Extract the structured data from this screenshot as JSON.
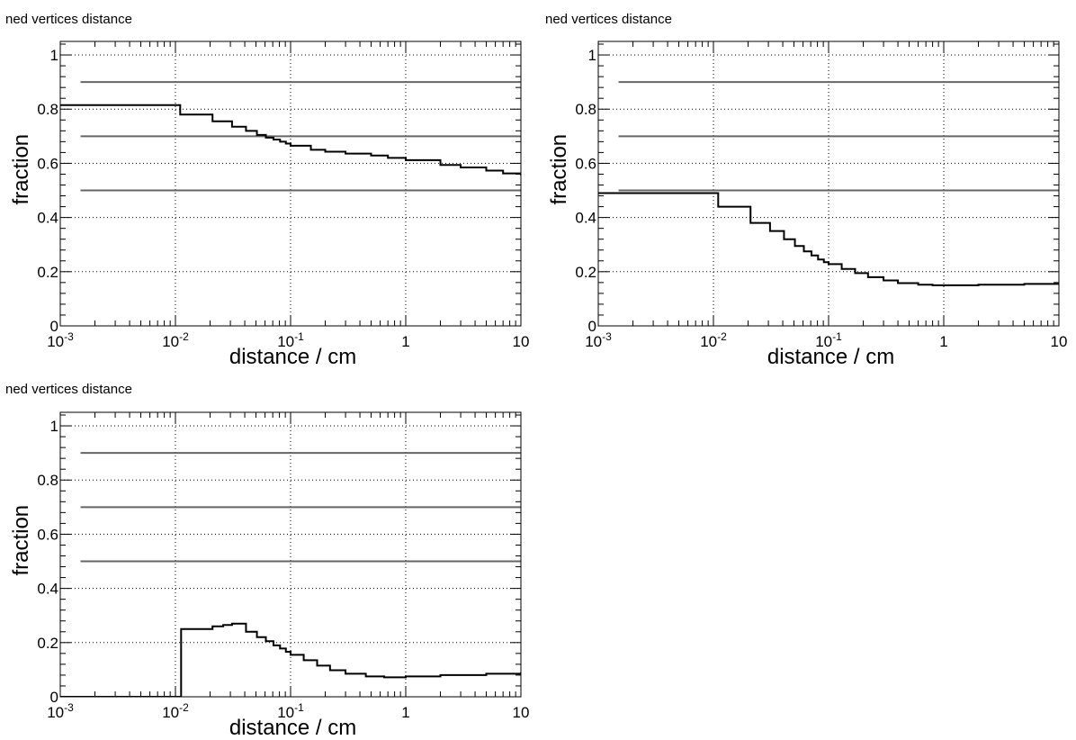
{
  "panels": [
    {
      "title": "ned vertices distance",
      "chart_data": {
        "type": "line",
        "title": "ned vertices distance",
        "xlabel": "distance / cm",
        "ylabel": "fraction",
        "xscale": "log",
        "xlim": [
          0.001,
          10
        ],
        "ylim": [
          0,
          1.05
        ],
        "x_tick_labels": [
          "10^-3",
          "10^-2",
          "10^-1",
          "1",
          "10"
        ],
        "y_tick_labels": [
          "0",
          "0.2",
          "0.4",
          "0.6",
          "0.8",
          "1"
        ],
        "grid": true,
        "reference_lines": [
          0.9,
          0.7,
          0.5
        ],
        "series": [
          {
            "style": "step",
            "x": [
              0.001,
              0.011,
              0.021,
              0.031,
              0.041,
              0.051,
              0.061,
              0.071,
              0.081,
              0.091,
              0.1,
              0.15,
              0.2,
              0.3,
              0.5,
              0.7,
              1,
              2,
              3,
              5,
              7,
              10
            ],
            "y": [
              0.815,
              0.78,
              0.755,
              0.735,
              0.72,
              0.705,
              0.695,
              0.688,
              0.68,
              0.673,
              0.665,
              0.65,
              0.643,
              0.636,
              0.629,
              0.62,
              0.612,
              0.594,
              0.585,
              0.573,
              0.563,
              0.556
            ]
          }
        ]
      }
    },
    {
      "title": "ned vertices distance",
      "chart_data": {
        "type": "line",
        "title": "ned vertices distance",
        "xlabel": "distance / cm",
        "ylabel": "fraction",
        "xscale": "log",
        "xlim": [
          0.001,
          10
        ],
        "ylim": [
          0,
          1.05
        ],
        "x_tick_labels": [
          "10^-3",
          "10^-2",
          "10^-1",
          "1",
          "10"
        ],
        "y_tick_labels": [
          "0",
          "0.2",
          "0.4",
          "0.6",
          "0.8",
          "1"
        ],
        "grid": true,
        "reference_lines": [
          0.9,
          0.7,
          0.5
        ],
        "series": [
          {
            "style": "step",
            "x": [
              0.001,
              0.011,
              0.021,
              0.031,
              0.041,
              0.051,
              0.061,
              0.071,
              0.081,
              0.091,
              0.1,
              0.13,
              0.17,
              0.22,
              0.3,
              0.4,
              0.6,
              0.8,
              1,
              2,
              5,
              10
            ],
            "y": [
              0.49,
              0.44,
              0.38,
              0.35,
              0.32,
              0.295,
              0.275,
              0.26,
              0.245,
              0.235,
              0.228,
              0.21,
              0.195,
              0.18,
              0.168,
              0.158,
              0.152,
              0.15,
              0.15,
              0.152,
              0.155,
              0.155
            ]
          }
        ]
      }
    },
    {
      "title": "ned vertices distance",
      "chart_data": {
        "type": "line",
        "title": "ned vertices distance",
        "xlabel": "distance / cm",
        "ylabel": "fraction",
        "xscale": "log",
        "xlim": [
          0.001,
          10
        ],
        "ylim": [
          0,
          1.05
        ],
        "x_tick_labels": [
          "10^-3",
          "10^-2",
          "10^-1",
          "1",
          "10"
        ],
        "y_tick_labels": [
          "0",
          "0.2",
          "0.4",
          "0.6",
          "0.8",
          "1"
        ],
        "grid": true,
        "reference_lines": [
          0.9,
          0.7,
          0.5
        ],
        "series": [
          {
            "style": "step",
            "x": [
              0.001,
              0.0112,
              0.021,
              0.026,
              0.031,
              0.041,
              0.051,
              0.061,
              0.071,
              0.081,
              0.091,
              0.1,
              0.13,
              0.17,
              0.22,
              0.3,
              0.45,
              0.65,
              1,
              2,
              5,
              10
            ],
            "y": [
              0.0,
              0.25,
              0.26,
              0.265,
              0.27,
              0.24,
              0.22,
              0.205,
              0.19,
              0.178,
              0.166,
              0.155,
              0.135,
              0.115,
              0.098,
              0.085,
              0.075,
              0.072,
              0.075,
              0.08,
              0.085,
              0.09
            ]
          }
        ]
      }
    }
  ]
}
